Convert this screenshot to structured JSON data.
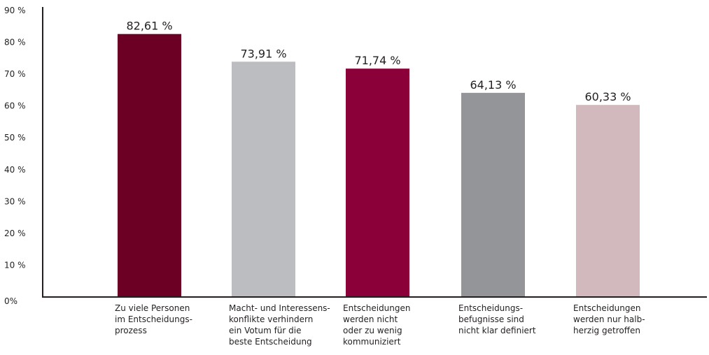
{
  "chart_data": {
    "type": "bar",
    "title": "",
    "xlabel": "",
    "ylabel": "",
    "ylim": [
      0,
      90
    ],
    "yticks": [
      {
        "value": 0,
        "label": "0%"
      },
      {
        "value": 10,
        "label": "10 %"
      },
      {
        "value": 20,
        "label": "20 %"
      },
      {
        "value": 30,
        "label": "30 %"
      },
      {
        "value": 40,
        "label": "40 %"
      },
      {
        "value": 50,
        "label": "50 %"
      },
      {
        "value": 60,
        "label": "60 %"
      },
      {
        "value": 70,
        "label": "70 %"
      },
      {
        "value": 80,
        "label": "80 %"
      },
      {
        "value": 90,
        "label": "90 %"
      }
    ],
    "grid": false,
    "legend": "none",
    "categories": [
      [
        "Zu viele Personen",
        "im Entscheidungs-",
        "prozess"
      ],
      [
        "Macht- und Interessens-",
        "konflikte verhindern",
        "ein Votum für die",
        "beste Entscheidung"
      ],
      [
        "Entscheidungen",
        "werden nicht",
        "oder zu wenig",
        "kommuniziert"
      ],
      [
        "Entscheidungs-",
        "befugnisse sind",
        "nicht klar definiert"
      ],
      [
        "Entscheidungen",
        "werden nur halb-",
        "herzig getroffen"
      ]
    ],
    "values": [
      82.61,
      73.91,
      71.74,
      64.13,
      60.33
    ],
    "value_labels": [
      "82,61 %",
      "73,91 %",
      "71,74 %",
      "64,13 %",
      "60,33 %"
    ],
    "colors": [
      "#6b0024",
      "#bcbdc0",
      "#8c0039",
      "#939598",
      "#d2b9bd"
    ]
  }
}
